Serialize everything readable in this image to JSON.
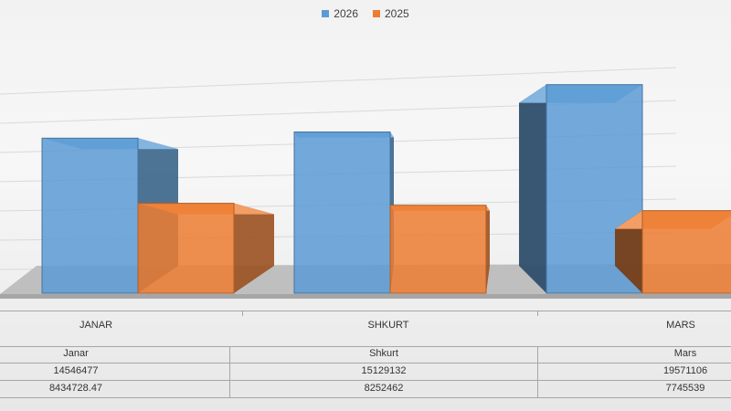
{
  "chart_data": {
    "type": "bar",
    "categories": [
      "JANAR",
      "SHKURT",
      "MARS"
    ],
    "series": [
      {
        "name": "2026",
        "values": [
          14546477,
          15129132,
          19571106
        ],
        "color": "#5b9bd5"
      },
      {
        "name": "2025",
        "values": [
          8434728.47,
          8252462,
          7745539
        ],
        "color": "#ed7d31"
      }
    ],
    "ylim": [
      0,
      21000000
    ],
    "grid": true,
    "legend_position": "top-center",
    "style": "3d-clustered"
  },
  "table": {
    "header": [
      "Janar",
      "Shkurt",
      "Mars"
    ],
    "rows": [
      [
        "14546477",
        "15129132",
        "19571106"
      ],
      [
        "8434728.47",
        "8252462",
        "7745539"
      ]
    ]
  }
}
